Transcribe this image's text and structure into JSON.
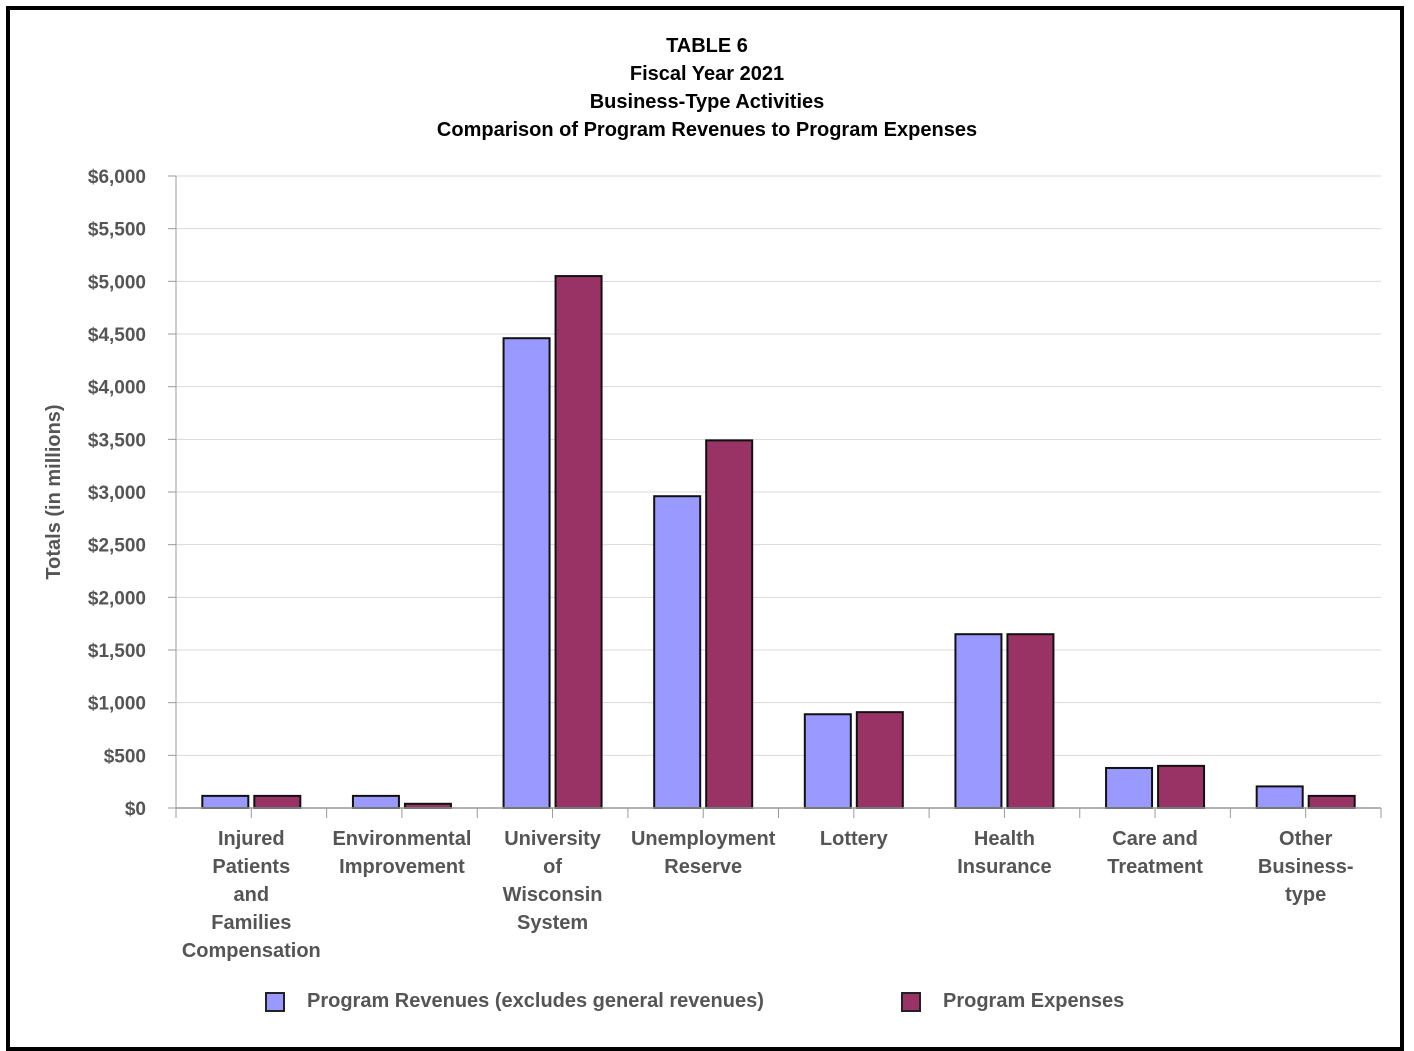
{
  "chart_data": {
    "type": "bar",
    "title_lines": [
      "TABLE 6",
      "Fiscal Year 2021",
      "Business-Type Activities",
      "Comparison of Program Revenues to Program Expenses"
    ],
    "ylabel": "Totals (in millions)",
    "xlabel": "",
    "ylim": [
      0,
      6000
    ],
    "yticks": [
      0,
      500,
      1000,
      1500,
      2000,
      2500,
      3000,
      3500,
      4000,
      4500,
      5000,
      5500,
      6000
    ],
    "ytick_labels": [
      "$0",
      "$500",
      "$1,000",
      "$1,500",
      "$2,000",
      "$2,500",
      "$3,000",
      "$3,500",
      "$4,000",
      "$4,500",
      "$5,000",
      "$5,500",
      "$6,000"
    ],
    "grid": true,
    "legend_position": "bottom",
    "categories": [
      "Injured Patients and Families Compensation",
      "Environmental Improvement",
      "University of Wisconsin System",
      "Unemployment Reserve",
      "Lottery",
      "Health Insurance",
      "Care and Treatment",
      "Other Business-type"
    ],
    "category_lines": [
      [
        "Injured",
        "Patients",
        "and",
        "Families",
        "Compensation"
      ],
      [
        "Environmental",
        "Improvement"
      ],
      [
        "University",
        "of",
        "Wisconsin",
        "System"
      ],
      [
        "Unemployment",
        "Reserve"
      ],
      [
        "Lottery"
      ],
      [
        "Health",
        "Insurance"
      ],
      [
        "Care and",
        "Treatment"
      ],
      [
        "Other",
        "Business-",
        "type"
      ]
    ],
    "series": [
      {
        "name": "Program Revenues (excludes general revenues)",
        "color": "#9999ff",
        "values": [
          115,
          115,
          4460,
          2960,
          890,
          1650,
          380,
          205
        ]
      },
      {
        "name": "Program Expenses",
        "color": "#993366",
        "values": [
          115,
          40,
          5050,
          3490,
          910,
          1650,
          400,
          115
        ]
      }
    ]
  }
}
